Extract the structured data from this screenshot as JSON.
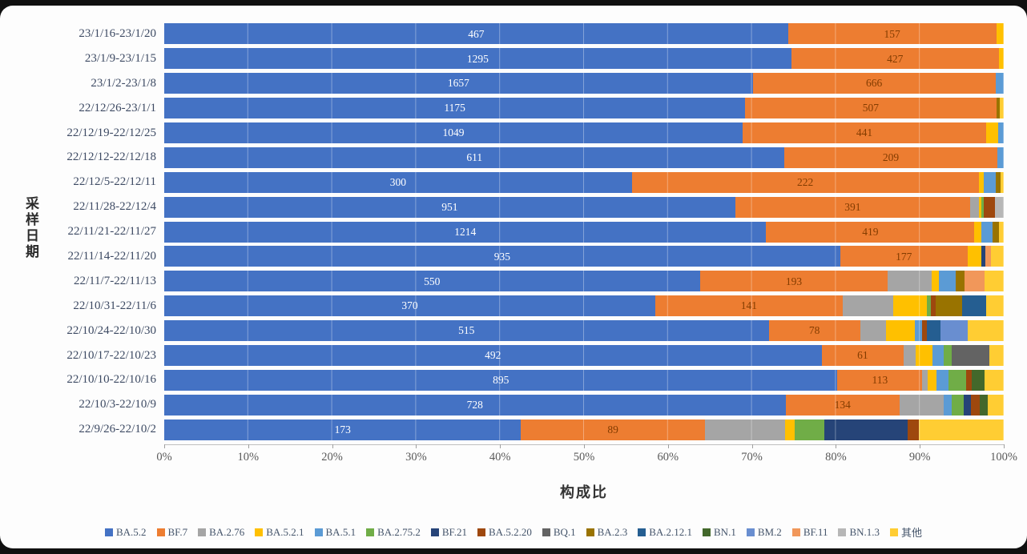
{
  "chart_data": {
    "type": "bar",
    "variant": "horizontal-100%-stacked",
    "title": "",
    "xlabel": "构成比",
    "ylabel": "采样日期",
    "xlim": [
      0,
      100
    ],
    "x_ticks": [
      "0%",
      "10%",
      "20%",
      "30%",
      "40%",
      "50%",
      "60%",
      "70%",
      "80%",
      "90%",
      "100%"
    ],
    "grid": "vertical-faint",
    "legend_position": "bottom",
    "value_label_colors": {
      "BA.5.2": "#ffffff",
      "BF.7": "#833C00"
    },
    "legend": [
      {
        "name": "BA.5.2",
        "color": "#4472C4"
      },
      {
        "name": "BF.7",
        "color": "#ED7D31"
      },
      {
        "name": "BA.2.76",
        "color": "#A5A5A5"
      },
      {
        "name": "BA.5.2.1",
        "color": "#FFC000"
      },
      {
        "name": "BA.5.1",
        "color": "#5B9BD5"
      },
      {
        "name": "BA.2.75.2",
        "color": "#70AD47"
      },
      {
        "name": "BF.21",
        "color": "#264478"
      },
      {
        "name": "BA.5.2.20",
        "color": "#9E480E"
      },
      {
        "name": "BQ.1",
        "color": "#636363"
      },
      {
        "name": "BA.2.3",
        "color": "#997300"
      },
      {
        "name": "BA.2.12.1",
        "color": "#255E91"
      },
      {
        "name": "BN.1",
        "color": "#43682B"
      },
      {
        "name": "BM.2",
        "color": "#698ED0"
      },
      {
        "name": "BF.11",
        "color": "#F1975A"
      },
      {
        "name": "BN.1.3",
        "color": "#B7B7B7"
      },
      {
        "name": "其他",
        "color": "#FFCD33"
      }
    ],
    "rows": [
      {
        "label": "23/1/16-23/1/20",
        "segments": [
          {
            "name": "BA.5.2",
            "pct": 74.3,
            "count": "467"
          },
          {
            "name": "BF.7",
            "pct": 24.8,
            "count": "157"
          },
          {
            "name": "BA.5.2.1",
            "pct": 0.9
          }
        ]
      },
      {
        "label": "23/1/9-23/1/15",
        "segments": [
          {
            "name": "BA.5.2",
            "pct": 74.7,
            "count": "1295"
          },
          {
            "name": "BF.7",
            "pct": 24.7,
            "count": "427"
          },
          {
            "name": "BA.5.2.1",
            "pct": 0.6
          }
        ]
      },
      {
        "label": "23/1/2-23/1/8",
        "segments": [
          {
            "name": "BA.5.2",
            "pct": 70.1,
            "count": "1657"
          },
          {
            "name": "BF.7",
            "pct": 28.9,
            "count": "666"
          },
          {
            "name": "BA.5.1",
            "pct": 1.0
          }
        ]
      },
      {
        "label": "22/12/26-23/1/1",
        "segments": [
          {
            "name": "BA.5.2",
            "pct": 69.2,
            "count": "1175"
          },
          {
            "name": "BF.7",
            "pct": 29.9,
            "count": "507"
          },
          {
            "name": "BA.2.3",
            "pct": 0.4
          },
          {
            "name": "其他",
            "pct": 0.5
          }
        ]
      },
      {
        "label": "22/12/19-22/12/25",
        "segments": [
          {
            "name": "BA.5.2",
            "pct": 68.9,
            "count": "1049"
          },
          {
            "name": "BF.7",
            "pct": 29.0,
            "count": "441"
          },
          {
            "name": "BA.5.2.1",
            "pct": 1.4
          },
          {
            "name": "BA.5.1",
            "pct": 0.7
          }
        ]
      },
      {
        "label": "22/12/12-22/12/18",
        "segments": [
          {
            "name": "BA.5.2",
            "pct": 73.9,
            "count": "611"
          },
          {
            "name": "BF.7",
            "pct": 25.3,
            "count": "209"
          },
          {
            "name": "BA.5.1",
            "pct": 0.8
          }
        ]
      },
      {
        "label": "22/12/5-22/12/11",
        "segments": [
          {
            "name": "BA.5.2",
            "pct": 55.7,
            "count": "300"
          },
          {
            "name": "BF.7",
            "pct": 41.3,
            "count": "222"
          },
          {
            "name": "BA.5.2.1",
            "pct": 0.6
          },
          {
            "name": "BA.5.1",
            "pct": 1.4
          },
          {
            "name": "BA.2.3",
            "pct": 0.6
          },
          {
            "name": "其他",
            "pct": 0.4
          }
        ]
      },
      {
        "label": "22/11/28-22/12/4",
        "segments": [
          {
            "name": "BA.5.2",
            "pct": 68.0,
            "count": "951"
          },
          {
            "name": "BF.7",
            "pct": 28.0,
            "count": "391"
          },
          {
            "name": "BA.2.76",
            "pct": 1.0
          },
          {
            "name": "BA.5.2.1",
            "pct": 0.3
          },
          {
            "name": "BA.2.75.2",
            "pct": 0.3
          },
          {
            "name": "BA.5.2.20",
            "pct": 1.4
          },
          {
            "name": "BN.1.3",
            "pct": 1.0
          }
        ]
      },
      {
        "label": "22/11/21-22/11/27",
        "segments": [
          {
            "name": "BA.5.2",
            "pct": 71.7,
            "count": "1214"
          },
          {
            "name": "BF.7",
            "pct": 24.8,
            "count": "419"
          },
          {
            "name": "BA.5.2.1",
            "pct": 0.8
          },
          {
            "name": "BA.5.1",
            "pct": 1.4
          },
          {
            "name": "BA.2.3",
            "pct": 0.7
          },
          {
            "name": "其他",
            "pct": 0.6
          }
        ]
      },
      {
        "label": "22/11/14-22/11/20",
        "segments": [
          {
            "name": "BA.5.2",
            "pct": 80.5,
            "count": "935"
          },
          {
            "name": "BF.7",
            "pct": 15.2,
            "count": "177"
          },
          {
            "name": "BA.5.2.1",
            "pct": 1.6
          },
          {
            "name": "BF.21",
            "pct": 0.5
          },
          {
            "name": "BF.11",
            "pct": 0.7
          },
          {
            "name": "其他",
            "pct": 1.5
          }
        ]
      },
      {
        "label": "22/11/7-22/11/13",
        "segments": [
          {
            "name": "BA.5.2",
            "pct": 63.8,
            "count": "550"
          },
          {
            "name": "BF.7",
            "pct": 22.4,
            "count": "193"
          },
          {
            "name": "BA.2.76",
            "pct": 5.2
          },
          {
            "name": "BA.5.2.1",
            "pct": 0.9
          },
          {
            "name": "BA.5.1",
            "pct": 2.0
          },
          {
            "name": "BA.2.3",
            "pct": 1.0
          },
          {
            "name": "BF.11",
            "pct": 2.4
          },
          {
            "name": "其他",
            "pct": 2.3
          }
        ]
      },
      {
        "label": "22/10/31-22/11/6",
        "segments": [
          {
            "name": "BA.5.2",
            "pct": 58.5,
            "count": "370"
          },
          {
            "name": "BF.7",
            "pct": 22.3,
            "count": "141"
          },
          {
            "name": "BA.2.76",
            "pct": 6.0
          },
          {
            "name": "BA.5.2.1",
            "pct": 4.0
          },
          {
            "name": "BA.2.75.2",
            "pct": 0.5
          },
          {
            "name": "BA.5.2.20",
            "pct": 0.6
          },
          {
            "name": "BA.2.3",
            "pct": 3.1
          },
          {
            "name": "BA.2.12.1",
            "pct": 2.9
          },
          {
            "name": "其他",
            "pct": 2.1
          }
        ]
      },
      {
        "label": "22/10/24-22/10/30",
        "segments": [
          {
            "name": "BA.5.2",
            "pct": 72.0,
            "count": "515"
          },
          {
            "name": "BF.7",
            "pct": 10.9,
            "count": "78"
          },
          {
            "name": "BA.2.76",
            "pct": 3.1
          },
          {
            "name": "BA.5.2.1",
            "pct": 3.4
          },
          {
            "name": "BA.5.1",
            "pct": 0.9
          },
          {
            "name": "BA.5.2.20",
            "pct": 0.5
          },
          {
            "name": "BA.2.12.1",
            "pct": 1.7
          },
          {
            "name": "BM.2",
            "pct": 3.2
          },
          {
            "name": "其他",
            "pct": 4.3
          }
        ]
      },
      {
        "label": "22/10/17-22/10/23",
        "segments": [
          {
            "name": "BA.5.2",
            "pct": 78.3,
            "count": "492"
          },
          {
            "name": "BF.7",
            "pct": 9.8,
            "count": "61"
          },
          {
            "name": "BA.2.76",
            "pct": 1.4
          },
          {
            "name": "BA.5.2.1",
            "pct": 2.0
          },
          {
            "name": "BA.5.1",
            "pct": 1.3
          },
          {
            "name": "BA.2.75.2",
            "pct": 1.0
          },
          {
            "name": "BQ.1",
            "pct": 4.5
          },
          {
            "name": "其他",
            "pct": 1.7
          }
        ]
      },
      {
        "label": "22/10/10-22/10/16",
        "segments": [
          {
            "name": "BA.5.2",
            "pct": 80.2,
            "count": "895"
          },
          {
            "name": "BF.7",
            "pct": 10.1,
            "count": "113"
          },
          {
            "name": "BA.2.76",
            "pct": 0.6
          },
          {
            "name": "BA.5.2.1",
            "pct": 1.1
          },
          {
            "name": "BA.5.1",
            "pct": 1.4
          },
          {
            "name": "BA.2.75.2",
            "pct": 2.1
          },
          {
            "name": "BA.5.2.20",
            "pct": 0.7
          },
          {
            "name": "BN.1",
            "pct": 1.5
          },
          {
            "name": "其他",
            "pct": 2.3
          }
        ]
      },
      {
        "label": "22/10/3-22/10/9",
        "segments": [
          {
            "name": "BA.5.2",
            "pct": 74.0,
            "count": "728"
          },
          {
            "name": "BF.7",
            "pct": 13.6,
            "count": "134"
          },
          {
            "name": "BA.2.76",
            "pct": 5.2
          },
          {
            "name": "BA.5.1",
            "pct": 1.0
          },
          {
            "name": "BA.2.75.2",
            "pct": 1.4
          },
          {
            "name": "BF.21",
            "pct": 0.9
          },
          {
            "name": "BA.5.2.20",
            "pct": 1.0
          },
          {
            "name": "BN.1",
            "pct": 1.0
          },
          {
            "name": "其他",
            "pct": 1.9
          }
        ]
      },
      {
        "label": "22/9/26-22/10/2",
        "segments": [
          {
            "name": "BA.5.2",
            "pct": 42.5,
            "count": "173"
          },
          {
            "name": "BF.7",
            "pct": 21.9,
            "count": "89"
          },
          {
            "name": "BA.2.76",
            "pct": 9.6
          },
          {
            "name": "BA.5.2.1",
            "pct": 1.1
          },
          {
            "name": "BA.2.75.2",
            "pct": 3.5
          },
          {
            "name": "BF.21",
            "pct": 10.0
          },
          {
            "name": "BA.5.2.20",
            "pct": 1.3
          },
          {
            "name": "其他",
            "pct": 10.1
          }
        ]
      }
    ]
  }
}
